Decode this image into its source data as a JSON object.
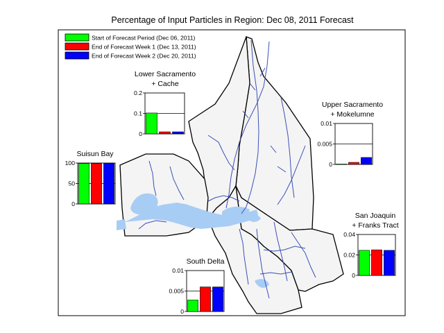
{
  "title": "Percentage of Input Particles in Region: Dec 08, 2011 Forecast",
  "legend": {
    "placement": "top-left",
    "items": [
      {
        "label": "Start of Forecast Period (Dec 06, 2011)",
        "color": "#00ff00"
      },
      {
        "label": "End of Forecast Week 1 (Dec 13, 2011)",
        "color": "#ff0000"
      },
      {
        "label": "End of Forecast Week 2 (Dec 20, 2011)",
        "color": "#0000ff"
      }
    ]
  },
  "colors": {
    "water": "#a8cdf5",
    "region_fill": "#f4f4f4",
    "boundary": "#000000"
  },
  "chart_data": [
    {
      "type": "bar",
      "region": "lower-sacramento",
      "title_lines": [
        "Lower Sacramento",
        "+ Cache"
      ],
      "ylim": [
        0,
        0.2
      ],
      "ticks": [
        "0.2",
        "0.1",
        "0"
      ],
      "series": [
        {
          "name": "Start of Forecast Period (Dec 06, 2011)",
          "value": 0.102
        },
        {
          "name": "End of Forecast Week 1 (Dec 13, 2011)",
          "value": 0.01
        },
        {
          "name": "End of Forecast Week 2 (Dec 20, 2011)",
          "value": 0.01
        }
      ]
    },
    {
      "type": "bar",
      "region": "upper-sacramento",
      "title_lines": [
        "Upper Sacramento",
        "+ Mokelumne"
      ],
      "ylim": [
        0,
        0.01
      ],
      "ticks": [
        "0.01",
        "0.005",
        "0"
      ],
      "series": [
        {
          "name": "Start of Forecast Period (Dec 06, 2011)",
          "value": 0.0001
        },
        {
          "name": "End of Forecast Week 1 (Dec 13, 2011)",
          "value": 0.0005
        },
        {
          "name": "End of Forecast Week 2 (Dec 20, 2011)",
          "value": 0.0017
        }
      ]
    },
    {
      "type": "bar",
      "region": "suisun-bay",
      "title_lines": [
        "Suisun Bay"
      ],
      "ylim": [
        0,
        100
      ],
      "ticks": [
        "100",
        "50",
        "0"
      ],
      "series": [
        {
          "name": "Start of Forecast Period (Dec 06, 2011)",
          "value": 99
        },
        {
          "name": "End of Forecast Week 1 (Dec 13, 2011)",
          "value": 99
        },
        {
          "name": "End of Forecast Week 2 (Dec 20, 2011)",
          "value": 99
        }
      ]
    },
    {
      "type": "bar",
      "region": "san-joaquin",
      "title_lines": [
        "San Joaquin",
        "+ Franks Tract"
      ],
      "ylim": [
        0,
        0.04
      ],
      "ticks": [
        "0.04",
        "0.02",
        "0"
      ],
      "series": [
        {
          "name": "Start of Forecast Period (Dec 06, 2011)",
          "value": 0.0245
        },
        {
          "name": "End of Forecast Week 1 (Dec 13, 2011)",
          "value": 0.025
        },
        {
          "name": "End of Forecast Week 2 (Dec 20, 2011)",
          "value": 0.0245
        }
      ]
    },
    {
      "type": "bar",
      "region": "south-delta",
      "title_lines": [
        "South Delta"
      ],
      "ylim": [
        0,
        0.01
      ],
      "ticks": [
        "0.01",
        "0.005",
        "0"
      ],
      "series": [
        {
          "name": "Start of Forecast Period (Dec 06, 2011)",
          "value": 0.0028
        },
        {
          "name": "End of Forecast Week 1 (Dec 13, 2011)",
          "value": 0.006
        },
        {
          "name": "End of Forecast Week 2 (Dec 20, 2011)",
          "value": 0.006
        }
      ]
    }
  ]
}
